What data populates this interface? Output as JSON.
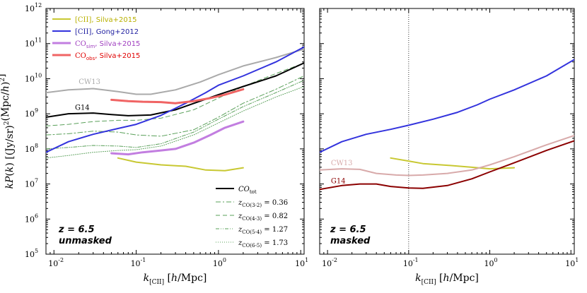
{
  "chart_data": [
    {
      "type": "line",
      "panel": "left",
      "xlabel": "k_[CII] [h/Mpc]",
      "ylabel": "kP(k) [(Jy/sr)^2 (Mpc/h)^2]",
      "xlim": [
        0.008,
        11
      ],
      "ylim": [
        100000.0,
        1000000000000.0
      ],
      "xscale": "log",
      "yscale": "log",
      "x_ticks": [
        {
          "base": "10",
          "exp": "-2"
        },
        {
          "base": "10",
          "exp": "-1"
        },
        {
          "base": "10",
          "exp": "0"
        },
        {
          "base": "10",
          "exp": "1"
        }
      ],
      "y_ticks": [
        {
          "base": "10",
          "exp": "5"
        },
        {
          "base": "10",
          "exp": "6"
        },
        {
          "base": "10",
          "exp": "7"
        },
        {
          "base": "10",
          "exp": "8"
        },
        {
          "base": "10",
          "exp": "9"
        },
        {
          "base": "10",
          "exp": "10"
        },
        {
          "base": "10",
          "exp": "11"
        },
        {
          "base": "10",
          "exp": "12"
        }
      ],
      "corner_label": [
        "z = 6.5",
        "unmasked"
      ],
      "series": [
        {
          "name": "CW13",
          "color": "#aaaaaa",
          "width": 2,
          "dash": "",
          "label_at": [
            0.02,
            7000000000.0
          ],
          "x": [
            0.008,
            0.015,
            0.03,
            0.06,
            0.1,
            0.15,
            0.3,
            0.6,
            1,
            2,
            5,
            11
          ],
          "y": [
            4000000000.0,
            4800000000.0,
            5200000000.0,
            4300000000.0,
            3600000000.0,
            3600000000.0,
            4800000000.0,
            8000000000.0,
            13000000000.0,
            23000000000.0,
            40000000000.0,
            70000000000.0
          ]
        },
        {
          "name": "G14",
          "color": "#000000",
          "width": 2,
          "dash": "",
          "label_at": [
            0.018,
            1300000000.0
          ],
          "x": [
            0.008,
            0.015,
            0.03,
            0.05,
            0.08,
            0.15,
            0.3,
            0.6,
            1,
            2,
            5,
            11
          ],
          "y": [
            800000000.0,
            1000000000.0,
            1050000000.0,
            950000000.0,
            880000000.0,
            920000000.0,
            1300000000.0,
            2300000000.0,
            3500000000.0,
            6000000000.0,
            12000000000.0,
            28000000000.0
          ]
        },
        {
          "name": "[CII], Silva+2015",
          "color": "#c8c832",
          "width": 2,
          "dash": "",
          "x": [
            0.06,
            0.1,
            0.2,
            0.4,
            0.7,
            1.2,
            2
          ],
          "y": [
            55000000.0,
            42000000.0,
            35000000.0,
            32000000.0,
            25000000.0,
            24000000.0,
            29000000.0
          ]
        },
        {
          "name": "[CII], Gong+2012",
          "color": "#3333dd",
          "width": 2,
          "dash": "",
          "x": [
            0.008,
            0.015,
            0.03,
            0.06,
            0.1,
            0.2,
            0.4,
            0.7,
            1,
            2,
            5,
            11
          ],
          "y": [
            80000000.0,
            160000000.0,
            260000000.0,
            380000000.0,
            500000000.0,
            900000000.0,
            2000000000.0,
            4000000000.0,
            6500000000.0,
            12000000000.0,
            30000000000.0,
            80000000000.0
          ]
        },
        {
          "name": "CO_sim, Silva+2015",
          "color": "#c27ee0",
          "width": 3,
          "dash": "",
          "x": [
            0.05,
            0.08,
            0.12,
            0.2,
            0.3,
            0.5,
            0.8,
            1.2,
            2
          ],
          "y": [
            75000000.0,
            70000000.0,
            80000000.0,
            90000000.0,
            100000000.0,
            150000000.0,
            250000000.0,
            400000000.0,
            600000000.0
          ]
        },
        {
          "name": "CO_obs, Silva+2015",
          "color": "#f06464",
          "width": 3,
          "dash": "",
          "x": [
            0.05,
            0.08,
            0.12,
            0.2,
            0.3,
            0.5,
            0.8,
            1.2,
            2
          ],
          "y": [
            2500000000.0,
            2300000000.0,
            2200000000.0,
            2150000000.0,
            2000000000.0,
            2300000000.0,
            2800000000.0,
            3500000000.0,
            5000000000.0
          ]
        },
        {
          "name": "CO_tot",
          "color": "#000000",
          "width": 2,
          "dash": "",
          "in_legend": true,
          "x": [],
          "y": []
        },
        {
          "name": "z_CO(3-2) = 0.36",
          "color": "#5aa05a",
          "width": 1,
          "dash": "7 3 2 3",
          "x": [
            0.008,
            0.015,
            0.03,
            0.06,
            0.1,
            0.2,
            0.5,
            1,
            2,
            5,
            11
          ],
          "y": [
            250000000.0,
            270000000.0,
            320000000.0,
            300000000.0,
            250000000.0,
            230000000.0,
            350000000.0,
            800000000.0,
            2000000000.0,
            5000000000.0,
            12000000000.0
          ]
        },
        {
          "name": "z_CO(4-3) = 0.82",
          "color": "#5aa05a",
          "width": 1,
          "dash": "6 4",
          "x": [
            0.008,
            0.015,
            0.03,
            0.06,
            0.1,
            0.2,
            0.5,
            1,
            2,
            5,
            11
          ],
          "y": [
            450000000.0,
            500000000.0,
            600000000.0,
            650000000.0,
            650000000.0,
            750000000.0,
            1300000000.0,
            2800000000.0,
            6000000000.0,
            14000000000.0,
            28000000000.0
          ]
        },
        {
          "name": "z_CO(5-4) = 1.27",
          "color": "#5aa05a",
          "width": 1,
          "dash": "5 2 1 2 1 2",
          "x": [
            0.008,
            0.015,
            0.03,
            0.06,
            0.1,
            0.2,
            0.5,
            1,
            2,
            5,
            11
          ],
          "y": [
            100000000.0,
            110000000.0,
            125000000.0,
            120000000.0,
            110000000.0,
            140000000.0,
            300000000.0,
            700000000.0,
            1600000000.0,
            4000000000.0,
            9000000000.0
          ]
        },
        {
          "name": "z_CO(6-5) = 1.73",
          "color": "#5aa05a",
          "width": 1,
          "dash": "1 2",
          "x": [
            0.008,
            0.015,
            0.03,
            0.06,
            0.1,
            0.2,
            0.5,
            1,
            2,
            5,
            11
          ],
          "y": [
            55000000.0,
            65000000.0,
            80000000.0,
            90000000.0,
            95000000.0,
            120000000.0,
            250000000.0,
            550000000.0,
            1200000000.0,
            3000000000.0,
            6000000000.0
          ]
        }
      ],
      "legend_top": [
        {
          "main": "[CII]",
          "sub": "",
          "rest": ", Silva+2015",
          "color": "#c8c832",
          "text_color": "#b8b000",
          "width": 2
        },
        {
          "main": "[CII]",
          "sub": "",
          "rest": ", Gong+2012",
          "color": "#3333dd",
          "text_color": "#1f1fa0",
          "width": 2
        },
        {
          "main": "CO",
          "sub": "sim",
          "rest": ", Silva+2015",
          "color": "#c27ee0",
          "text_color": "#a040c0",
          "width": 3
        },
        {
          "main": "CO",
          "sub": "obs",
          "rest": ", Silva+2015",
          "color": "#f06464",
          "text_color": "#e00000",
          "width": 3
        }
      ],
      "legend_bottom": [
        {
          "main": "CO",
          "sub": "tot",
          "rest": "",
          "color": "#000000",
          "dash": "",
          "width": 2
        },
        {
          "main": "z",
          "sub": "CO(3-2)",
          "rest": " = 0.36",
          "color": "#5aa05a",
          "dash": "7 3 2 3",
          "width": 1
        },
        {
          "main": "z",
          "sub": "CO(4-3)",
          "rest": " = 0.82",
          "color": "#5aa05a",
          "dash": "6 4",
          "width": 1
        },
        {
          "main": "z",
          "sub": "CO(5-4)",
          "rest": " = 1.27",
          "color": "#5aa05a",
          "dash": "5 2 1 2 1 2",
          "width": 1
        },
        {
          "main": "z",
          "sub": "CO(6-5)",
          "rest": " = 1.73",
          "color": "#5aa05a",
          "dash": "1 2",
          "width": 1
        }
      ]
    },
    {
      "type": "line",
      "panel": "right",
      "xlabel": "k_[CII] [h/Mpc]",
      "xlim": [
        0.008,
        11
      ],
      "ylim": [
        100000.0,
        1000000000000.0
      ],
      "xscale": "log",
      "yscale": "log",
      "x_ticks": [
        {
          "base": "10",
          "exp": "-2"
        },
        {
          "base": "10",
          "exp": "-1"
        },
        {
          "base": "10",
          "exp": "0"
        },
        {
          "base": "10",
          "exp": "1"
        }
      ],
      "vline_x": 0.1,
      "corner_label": [
        "z = 6.5",
        "masked"
      ],
      "series": [
        {
          "name": "[CII], Gong+2012",
          "color": "#3333dd",
          "width": 2,
          "x": [
            0.008,
            0.015,
            0.03,
            0.06,
            0.1,
            0.2,
            0.4,
            0.7,
            1,
            2,
            5,
            11
          ],
          "y": [
            80000000.0,
            160000000.0,
            260000000.0,
            360000000.0,
            470000000.0,
            700000000.0,
            1100000000.0,
            1800000000.0,
            2600000000.0,
            4800000000.0,
            12000000000.0,
            35000000000.0
          ]
        },
        {
          "name": "[CII], Silva+2015",
          "color": "#c8c832",
          "width": 2,
          "x": [
            0.06,
            0.1,
            0.15,
            0.3,
            0.6,
            1,
            2
          ],
          "y": [
            55000000.0,
            45000000.0,
            38000000.0,
            34000000.0,
            30000000.0,
            27000000.0,
            29000000.0
          ]
        },
        {
          "name": "CW13",
          "color": "#d8aaaa",
          "width": 2,
          "label_at": [
            0.011,
            34000000.0
          ],
          "x": [
            0.008,
            0.015,
            0.025,
            0.04,
            0.07,
            0.1,
            0.15,
            0.3,
            0.6,
            1,
            2,
            5,
            11
          ],
          "y": [
            25000000.0,
            27000000.0,
            26000000.0,
            20000000.0,
            18000000.0,
            17500000.0,
            18000000.0,
            20000000.0,
            25000000.0,
            35000000.0,
            60000000.0,
            130000000.0,
            240000000.0
          ]
        },
        {
          "name": "G14",
          "color": "#8b0000",
          "width": 2,
          "label_at": [
            0.011,
            10500000.0
          ],
          "x": [
            0.008,
            0.015,
            0.025,
            0.04,
            0.06,
            0.1,
            0.15,
            0.3,
            0.6,
            1,
            2,
            5,
            11
          ],
          "y": [
            7000000.0,
            9000000.0,
            10000000.0,
            10000000.0,
            8500000.0,
            7700000.0,
            7500000.0,
            9000000.0,
            14000000.0,
            22000000.0,
            40000000.0,
            90000000.0,
            170000000.0
          ]
        }
      ]
    }
  ]
}
